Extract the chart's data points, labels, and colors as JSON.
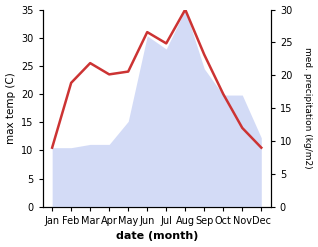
{
  "months": [
    "Jan",
    "Feb",
    "Mar",
    "Apr",
    "May",
    "Jun",
    "Jul",
    "Aug",
    "Sep",
    "Oct",
    "Nov",
    "Dec"
  ],
  "temperature": [
    10.5,
    22.0,
    25.5,
    23.5,
    24.0,
    31.0,
    29.0,
    35.0,
    27.0,
    20.0,
    14.0,
    10.5
  ],
  "precipitation": [
    9.0,
    9.0,
    9.5,
    9.5,
    13.0,
    26.0,
    24.0,
    30.0,
    21.0,
    17.0,
    17.0,
    10.5
  ],
  "temp_color": "#cc3333",
  "precip_color": "#b0bef0",
  "precip_fill_alpha": 0.55,
  "xlabel": "date (month)",
  "ylabel_left": "max temp (C)",
  "ylabel_right": "med. precipitation (kg/m2)",
  "ylim_left": [
    0,
    35
  ],
  "ylim_right": [
    0,
    30
  ],
  "yticks_left": [
    0,
    5,
    10,
    15,
    20,
    25,
    30,
    35
  ],
  "yticks_right": [
    0,
    5,
    10,
    15,
    20,
    25,
    30
  ],
  "background_color": "#ffffff",
  "figsize": [
    3.18,
    2.47
  ],
  "dpi": 100
}
